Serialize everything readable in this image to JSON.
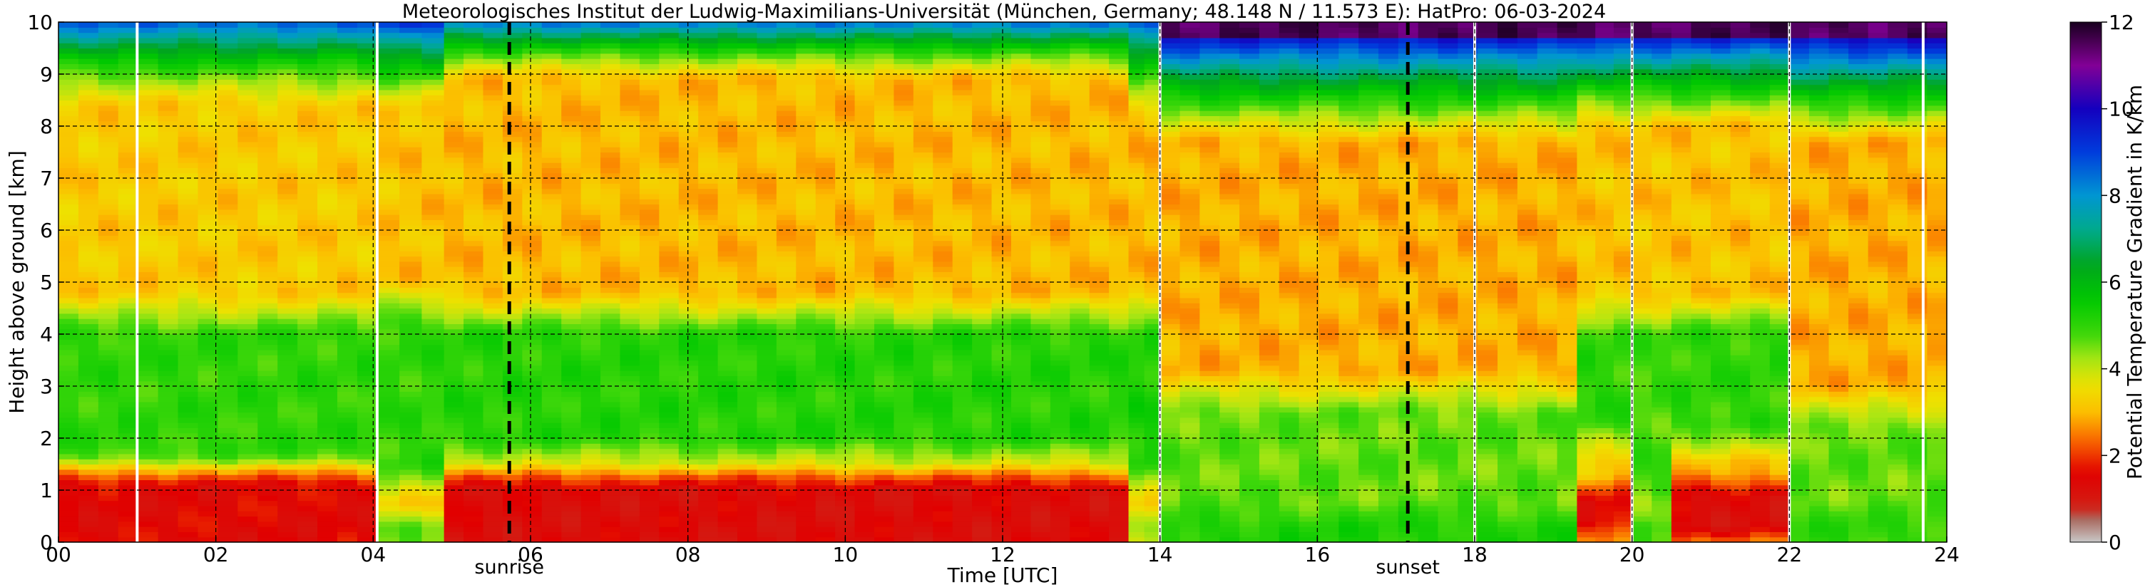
{
  "chart_data": {
    "type": "heatmap",
    "title": "Meteorologisches Institut der Ludwig-Maximilians-Universität (München, Germany; 48.148 N / 11.573 E):    HatPro: 06-03-2024",
    "xlabel": "Time [UTC]",
    "ylabel": "Height above ground [km]",
    "xlim": [
      0,
      24
    ],
    "ylim": [
      0,
      10
    ],
    "x_ticks": [
      0,
      2,
      4,
      6,
      8,
      10,
      12,
      14,
      16,
      18,
      20,
      22,
      24
    ],
    "x_tick_labels": [
      "00",
      "02",
      "04",
      "06",
      "08",
      "10",
      "12",
      "14",
      "16",
      "18",
      "20",
      "22",
      "24"
    ],
    "y_ticks": [
      0,
      1,
      2,
      3,
      4,
      5,
      6,
      7,
      8,
      9,
      10
    ],
    "y_tick_labels": [
      "0",
      "1",
      "2",
      "3",
      "4",
      "5",
      "6",
      "7",
      "8",
      "9",
      "10"
    ],
    "grid": true,
    "colorbar": {
      "label": "Potential Temperature Gradient in K/km",
      "range": [
        0,
        12
      ],
      "ticks": [
        0,
        2,
        4,
        6,
        8,
        10,
        12
      ],
      "tick_labels": [
        "0",
        "2",
        "4",
        "6",
        "8",
        "10",
        "12"
      ]
    },
    "events": [
      {
        "label": "sunrise",
        "time": 5.73
      },
      {
        "label": "sunset",
        "time": 17.15
      }
    ],
    "data_gaps": [
      1.0,
      4.05,
      14.0,
      18.0,
      20.0,
      22.0,
      23.7
    ],
    "regimes": [
      {
        "t_start": 0.0,
        "t_end": 4.05,
        "surface_layer_km": [
          0.0,
          1.1
        ],
        "surface_value": 1.5,
        "mid_layer_km": [
          1.8,
          4.0
        ],
        "mid_value": 5.0,
        "upper_value": 3.2,
        "top_layer_km": [
          8.7,
          10.0
        ],
        "top_value": 6.2
      },
      {
        "t_start": 4.05,
        "t_end": 4.9,
        "surface_layer_km": [
          0.0,
          0.3
        ],
        "surface_value": 4.5,
        "mid_layer_km": [
          1.5,
          4.2
        ],
        "mid_value": 5.0,
        "upper_value": 3.1,
        "top_layer_km": [
          8.6,
          10.0
        ],
        "top_value": 6.8
      },
      {
        "t_start": 4.9,
        "t_end": 13.6,
        "surface_layer_km": [
          0.0,
          1.0
        ],
        "surface_value": 1.3,
        "mid_layer_km": [
          2.0,
          4.0
        ],
        "mid_value": 5.1,
        "upper_value": 3.0,
        "top_layer_km": [
          9.2,
          10.0
        ],
        "top_value": 6.0
      },
      {
        "t_start": 13.6,
        "t_end": 14.0,
        "surface_layer_km": [
          0.0,
          0.3
        ],
        "surface_value": 4.0,
        "mid_layer_km": [
          1.5,
          4.0
        ],
        "mid_value": 5.2,
        "upper_value": 3.0,
        "top_layer_km": [
          8.5,
          10.0
        ],
        "top_value": 6.5
      },
      {
        "t_start": 14.0,
        "t_end": 19.3,
        "surface_layer_km": [
          0.0,
          0.3
        ],
        "surface_value": 5.2,
        "mid_layer_km": [
          0.3,
          2.5
        ],
        "mid_value": 4.6,
        "upper_value": 2.9,
        "top_layer_km": [
          8.0,
          10.0
        ],
        "top_value": 8.5
      },
      {
        "t_start": 19.3,
        "t_end": 20.0,
        "surface_layer_km": [
          0.4,
          0.8
        ],
        "surface_value": 1.5,
        "mid_layer_km": [
          2.3,
          4.0
        ],
        "mid_value": 5.0,
        "upper_value": 3.1,
        "top_layer_km": [
          8.3,
          10.0
        ],
        "top_value": 8.5
      },
      {
        "t_start": 20.0,
        "t_end": 20.5,
        "surface_layer_km": [
          0.0,
          0.3
        ],
        "surface_value": 5.0,
        "mid_layer_km": [
          1.0,
          4.0
        ],
        "mid_value": 4.8,
        "upper_value": 3.1,
        "top_layer_km": [
          8.3,
          10.0
        ],
        "top_value": 8.5
      },
      {
        "t_start": 20.5,
        "t_end": 22.0,
        "surface_layer_km": [
          0.3,
          0.9
        ],
        "surface_value": 1.3,
        "mid_layer_km": [
          2.3,
          4.0
        ],
        "mid_value": 5.0,
        "upper_value": 3.1,
        "top_layer_km": [
          8.3,
          10.0
        ],
        "top_value": 8.5
      },
      {
        "t_start": 22.0,
        "t_end": 24.0,
        "surface_layer_km": [
          0.0,
          0.3
        ],
        "surface_value": 5.0,
        "mid_layer_km": [
          0.3,
          2.2
        ],
        "mid_value": 4.6,
        "upper_value": 2.9,
        "top_layer_km": [
          8.0,
          10.0
        ],
        "top_value": 8.8
      }
    ]
  }
}
